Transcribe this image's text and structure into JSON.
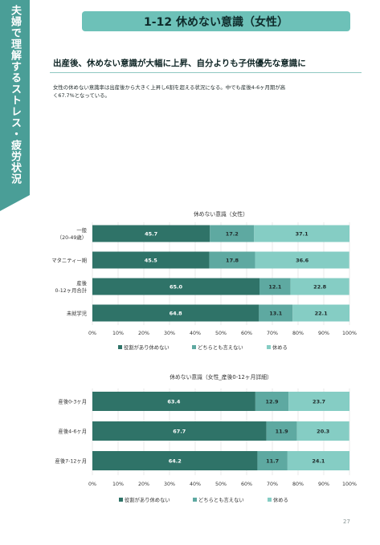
{
  "side_tab": {
    "text": "夫婦で理解するストレス・疲労状況"
  },
  "section_title": "1-12 休めない意識（女性）",
  "headline": "出産後、休めない意識が大幅に上昇、自分よりも子供優先な意識に",
  "body_lines": [
    "女性の休めない意識率は出産後から大きく上昇し6割を超える状況になる。中でも産後4-6ヶ月期が高",
    "く67.7%となっている。"
  ],
  "page_number": "27",
  "colors": {
    "series1": "#2f7368",
    "series2": "#5ea9a1",
    "series3": "#85cdc4",
    "accent": "#4a9e97"
  },
  "chart_data": [
    {
      "type": "bar",
      "orientation": "horizontal",
      "stacked": true,
      "title": "休めない意識（女性）",
      "categories": [
        "一般\n（20-49歳）",
        "マタニティー期",
        "産後\n0-12ヶ月合計",
        "未就学児"
      ],
      "series": [
        {
          "name": "役割があり休めない",
          "values": [
            45.7,
            45.5,
            65.0,
            64.8
          ]
        },
        {
          "name": "どちらとも言えない",
          "values": [
            17.2,
            17.8,
            12.1,
            13.1
          ]
        },
        {
          "name": "休める",
          "values": [
            37.1,
            36.6,
            22.8,
            22.1
          ]
        }
      ],
      "value_labels": [
        [
          "45.7",
          "17.2",
          "37.1"
        ],
        [
          "45.5",
          "17.8",
          "36.6"
        ],
        [
          "65.0",
          "12.1",
          "22.8"
        ],
        [
          "64.8",
          "13.1",
          "22.1"
        ]
      ],
      "xlim": [
        0,
        100
      ],
      "ticks": [
        "0%",
        "10%",
        "20%",
        "30%",
        "40%",
        "50%",
        "60%",
        "70%",
        "80%",
        "90%",
        "100%"
      ],
      "legend_position": "bottom"
    },
    {
      "type": "bar",
      "orientation": "horizontal",
      "stacked": true,
      "title": "休めない意識（女性_産後0-12ヶ月詳細）",
      "categories": [
        "産後0-3ヶ月",
        "産後4-6ヶ月",
        "産後7-12ヶ月"
      ],
      "series": [
        {
          "name": "役割があり休めない",
          "values": [
            63.4,
            67.7,
            64.2
          ]
        },
        {
          "name": "どちらとも言えない",
          "values": [
            12.9,
            11.9,
            11.7
          ]
        },
        {
          "name": "休める",
          "values": [
            23.7,
            20.3,
            24.1
          ]
        }
      ],
      "value_labels": [
        [
          "63.4",
          "12.9",
          "23.7"
        ],
        [
          "67.7",
          "11.9",
          "20.3"
        ],
        [
          "64.2",
          "11.7",
          "24.1"
        ]
      ],
      "xlim": [
        0,
        100
      ],
      "ticks": [
        "0%",
        "10%",
        "20%",
        "30%",
        "40%",
        "50%",
        "60%",
        "70%",
        "80%",
        "90%",
        "100%"
      ],
      "legend_position": "bottom"
    }
  ]
}
